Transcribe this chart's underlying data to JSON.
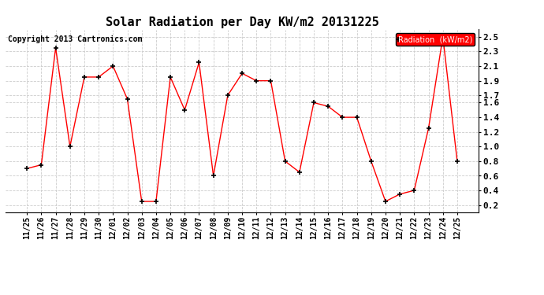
{
  "title": "Solar Radiation per Day KW/m2 20131225",
  "copyright_text": "Copyright 2013 Cartronics.com",
  "legend_label": "Radiation  (kW/m2)",
  "dates": [
    "11/25",
    "11/26",
    "11/27",
    "11/28",
    "11/29",
    "11/30",
    "12/01",
    "12/02",
    "12/03",
    "12/04",
    "12/05",
    "12/06",
    "12/07",
    "12/08",
    "12/09",
    "12/10",
    "12/11",
    "12/12",
    "12/13",
    "12/14",
    "12/15",
    "12/16",
    "12/17",
    "12/18",
    "12/19",
    "12/20",
    "12/21",
    "12/22",
    "12/23",
    "12/24",
    "12/25"
  ],
  "values": [
    0.7,
    0.75,
    2.35,
    1.0,
    1.95,
    1.95,
    2.1,
    1.65,
    0.25,
    0.25,
    1.95,
    1.5,
    2.15,
    0.6,
    1.7,
    2.0,
    1.9,
    1.9,
    0.8,
    0.65,
    1.6,
    1.55,
    1.4,
    1.4,
    0.8,
    0.25,
    0.35,
    0.4,
    1.25,
    2.5,
    0.8
  ],
  "line_color": "#ff0000",
  "marker_color": "#000000",
  "bg_color": "#ffffff",
  "grid_color": "#cccccc",
  "ylim_min": 0.1,
  "ylim_max": 2.6,
  "yticks": [
    0.2,
    0.4,
    0.6,
    0.8,
    1.0,
    1.2,
    1.4,
    1.6,
    1.7,
    1.9,
    2.1,
    2.3,
    2.5
  ],
  "legend_bg": "#ff0000",
  "legend_text_color": "#ffffff",
  "title_fontsize": 11,
  "tick_fontsize": 7,
  "copyright_fontsize": 7
}
